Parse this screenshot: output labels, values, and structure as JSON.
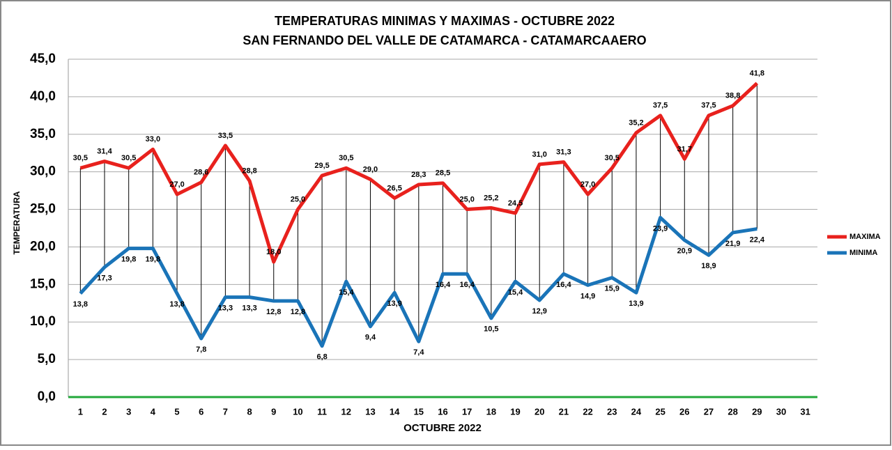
{
  "chart_data": {
    "type": "line",
    "title": "TEMPERATURAS MINIMAS Y MAXIMAS - OCTUBRE 2022",
    "subtitle": "SAN FERNANDO DEL VALLE DE CATAMARCA - CATAMARCAAERO",
    "y_label": "TEMPERATURA",
    "x_label": "OCTUBRE 2022",
    "categories": [
      "1",
      "2",
      "3",
      "4",
      "5",
      "6",
      "7",
      "8",
      "9",
      "10",
      "11",
      "12",
      "13",
      "14",
      "15",
      "16",
      "17",
      "18",
      "19",
      "20",
      "21",
      "22",
      "23",
      "24",
      "25",
      "26",
      "27",
      "28",
      "29",
      "30",
      "31"
    ],
    "series": [
      {
        "name": "MAXIMA",
        "color": "#e8211d",
        "values": [
          30.5,
          31.4,
          30.5,
          33.0,
          27.0,
          28.6,
          33.5,
          28.8,
          18.0,
          25.0,
          29.5,
          30.5,
          29.0,
          26.5,
          28.3,
          28.5,
          25.0,
          25.2,
          24.5,
          31.0,
          31.3,
          27.0,
          30.5,
          35.2,
          37.5,
          31.7,
          37.5,
          38.8,
          41.8,
          null,
          null
        ],
        "value_labels": [
          "30,5",
          "31,4",
          "30,5",
          "33,0",
          "27,0",
          "28,6",
          "33,5",
          "28,8",
          "18,0",
          "25,0",
          "29,5",
          "30,5",
          "29,0",
          "26,5",
          "28,3",
          "28,5",
          "25,0",
          "25,2",
          "24,5",
          "31,0",
          "31,3",
          "27,0",
          "30,5",
          "35,2",
          "37,5",
          "31,7",
          "37,5",
          "38,8",
          "41,8",
          null,
          null
        ]
      },
      {
        "name": "MINIMA",
        "color": "#1a74b8",
        "values": [
          13.8,
          17.3,
          19.8,
          19.8,
          13.8,
          7.8,
          13.3,
          13.3,
          12.8,
          12.8,
          6.8,
          15.4,
          9.4,
          13.9,
          7.4,
          16.4,
          16.4,
          10.5,
          15.4,
          12.9,
          16.4,
          14.9,
          15.9,
          13.9,
          23.9,
          20.9,
          18.9,
          21.9,
          22.4,
          null,
          null
        ],
        "value_labels": [
          "13,8",
          "17,3",
          "19,8",
          "19,8",
          "13,8",
          "7,8",
          "13,3",
          "13,3",
          "12,8",
          "12,8",
          "6,8",
          "15,4",
          "9,4",
          "13,9",
          "7,4",
          "16,4",
          "16,4",
          "10,5",
          "15,4",
          "12,9",
          "16,4",
          "14,9",
          "15,9",
          "13,9",
          "23,9",
          "20,9",
          "18,9",
          "21,9",
          "22,4",
          null,
          null
        ]
      }
    ],
    "ylim": [
      0,
      45
    ],
    "yticks": [
      {
        "value": 0,
        "label": "0,0"
      },
      {
        "value": 5,
        "label": "5,0"
      },
      {
        "value": 10,
        "label": "10,0"
      },
      {
        "value": 15,
        "label": "15,0"
      },
      {
        "value": 20,
        "label": "20,0"
      },
      {
        "value": 25,
        "label": "25,0"
      },
      {
        "value": 30,
        "label": "30,0"
      },
      {
        "value": 35,
        "label": "35,0"
      },
      {
        "value": 40,
        "label": "40,0"
      },
      {
        "value": 45,
        "label": "45,0"
      }
    ],
    "grid": true,
    "legend": "right",
    "axis_color": "#22a83a"
  }
}
